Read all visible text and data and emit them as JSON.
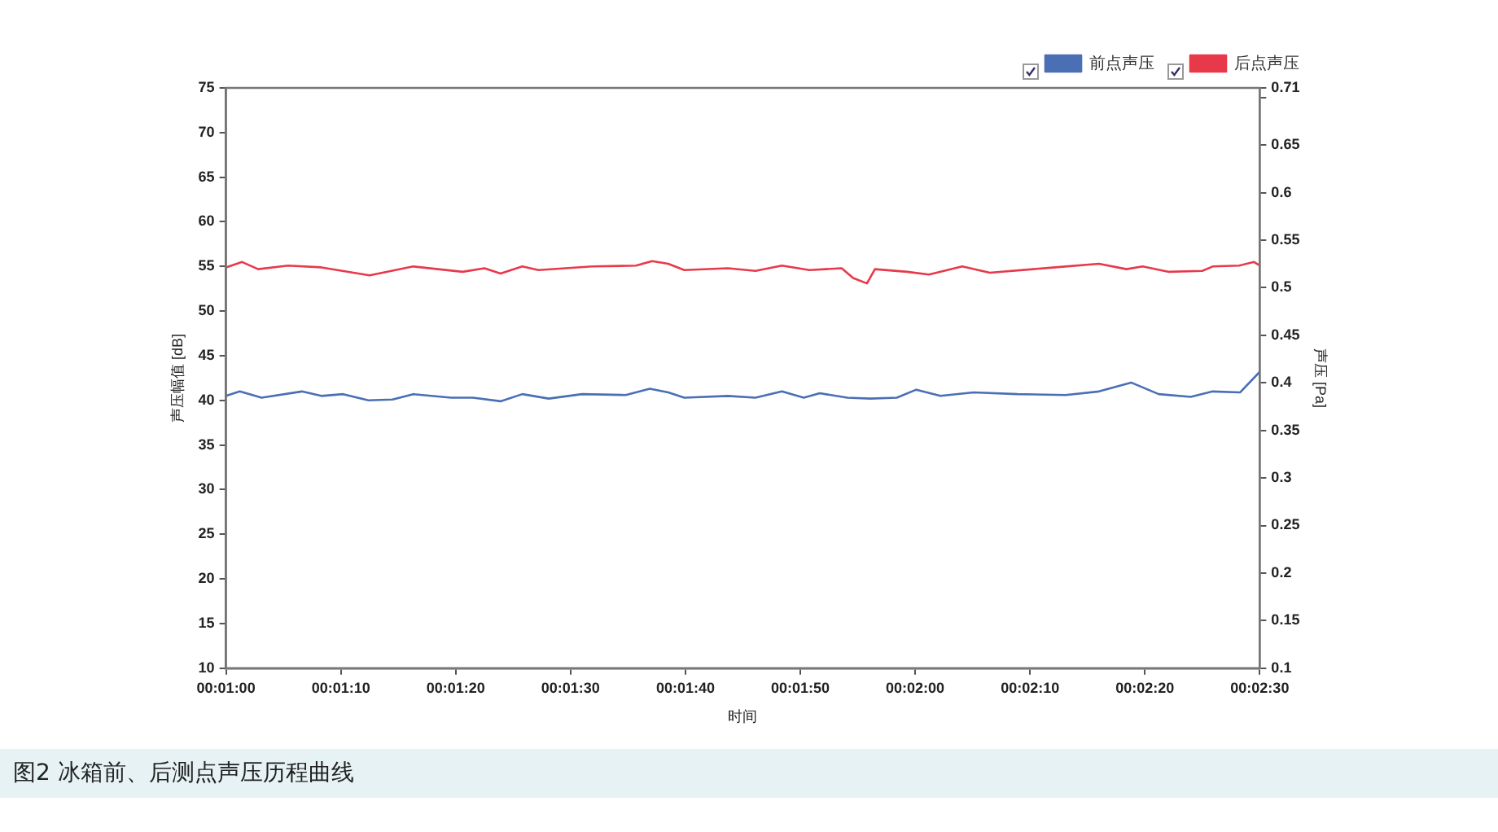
{
  "chart_data": {
    "type": "line",
    "xlabel": "时间",
    "ylabel": "声压幅值 [dB]",
    "y2label": "声压 [Pa]",
    "xlim": [
      0.016667,
      0.041667
    ],
    "xticks": [
      {
        "value": 0.016667,
        "label": "00:01:00"
      },
      {
        "value": 0.019444,
        "label": "00:01:10"
      },
      {
        "value": 0.022222,
        "label": "00:01:20"
      },
      {
        "value": 0.025,
        "label": "00:01:30"
      },
      {
        "value": 0.027778,
        "label": "00:01:40"
      },
      {
        "value": 0.030556,
        "label": "00:01:50"
      },
      {
        "value": 0.033333,
        "label": "00:02:00"
      },
      {
        "value": 0.036111,
        "label": "00:02:10"
      },
      {
        "value": 0.038889,
        "label": "00:02:20"
      },
      {
        "value": 0.041667,
        "label": "00:02:30"
      }
    ],
    "ylim": [
      10,
      75
    ],
    "yticks": [
      10,
      15,
      20,
      25,
      30,
      35,
      40,
      45,
      50,
      55,
      60,
      65,
      70,
      75
    ],
    "y2lim": [
      0.1,
      0.71
    ],
    "y2ticks": [
      0.1,
      0.15,
      0.2,
      0.25,
      0.3,
      0.35,
      0.4,
      0.45,
      0.5,
      0.55,
      0.6,
      0.65,
      {
        "value": 0.7,
        "label": null
      },
      0.71
    ],
    "grid": false,
    "legend": "top right",
    "marker": "none",
    "line_style": "solid",
    "annotations": [
      "图2 冰箱前、后测点声压历程曲线"
    ],
    "series": [
      {
        "name": "前点声压",
        "color": "#4a6fb5",
        "x": [
          0.016667,
          0.017,
          0.017528,
          0.0185,
          0.018972,
          0.0195,
          0.020111,
          0.020694,
          0.021194,
          0.022111,
          0.022639,
          0.023306,
          0.023833,
          0.024472,
          0.025278,
          0.026333,
          0.026917,
          0.027361,
          0.02775,
          0.028806,
          0.029472,
          0.030111,
          0.030639,
          0.031028,
          0.031694,
          0.03225,
          0.032889,
          0.033361,
          0.033944,
          0.03475,
          0.035806,
          0.036972,
          0.037778,
          0.038556,
          0.039222,
          0.04,
          0.040528,
          0.041194,
          0.041667
        ],
        "values": [
          40.5,
          41.0,
          40.3,
          41.0,
          40.5,
          40.7,
          40.0,
          40.1,
          40.7,
          40.3,
          40.3,
          39.9,
          40.7,
          40.2,
          40.7,
          40.6,
          41.3,
          40.9,
          40.3,
          40.5,
          40.3,
          41.0,
          40.3,
          40.8,
          40.3,
          40.2,
          40.3,
          41.2,
          40.5,
          40.9,
          40.7,
          40.6,
          41.0,
          42.0,
          40.7,
          40.4,
          41.0,
          40.9,
          43.2
        ]
      },
      {
        "name": "后点声压",
        "color": "#e8394a",
        "x": [
          0.016667,
          0.017056,
          0.017444,
          0.018167,
          0.018972,
          0.020139,
          0.021194,
          0.022389,
          0.022917,
          0.023306,
          0.023833,
          0.024222,
          0.025528,
          0.026583,
          0.026972,
          0.027361,
          0.02775,
          0.028806,
          0.029472,
          0.030111,
          0.030778,
          0.031556,
          0.031833,
          0.032167,
          0.032361,
          0.033139,
          0.033667,
          0.034472,
          0.035139,
          0.036722,
          0.037778,
          0.038444,
          0.038833,
          0.039472,
          0.040278,
          0.040528,
          0.041167,
          0.041528,
          0.041667
        ],
        "values": [
          54.9,
          55.5,
          54.7,
          55.1,
          54.9,
          54.0,
          55.0,
          54.4,
          54.8,
          54.2,
          55.0,
          54.6,
          55.0,
          55.1,
          55.6,
          55.3,
          54.6,
          54.8,
          54.5,
          55.1,
          54.6,
          54.8,
          53.7,
          53.1,
          54.7,
          54.4,
          54.1,
          55.0,
          54.3,
          54.9,
          55.3,
          54.7,
          55.0,
          54.4,
          54.5,
          55.0,
          55.1,
          55.5,
          55.1
        ]
      }
    ]
  }
}
